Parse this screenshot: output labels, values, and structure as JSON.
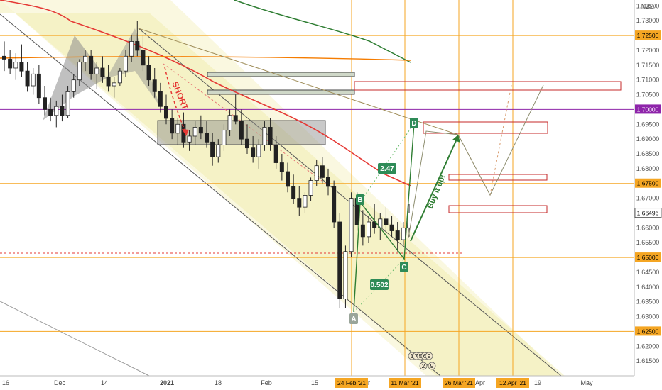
{
  "chart_data": {
    "type": "candlestick",
    "currency": "NZD",
    "ylim": [
      1.61,
      1.737
    ],
    "price_ticks": [
      "1.73500",
      "1.73000",
      "1.72500",
      "1.72000",
      "1.71500",
      "1.71000",
      "1.70500",
      "1.70000",
      "1.69500",
      "1.69000",
      "1.68500",
      "1.68000",
      "1.67500",
      "1.67000",
      "1.66496",
      "1.66000",
      "1.65500",
      "1.65000",
      "1.64500",
      "1.64000",
      "1.63500",
      "1.63000",
      "1.62500",
      "1.62000",
      "1.61500"
    ],
    "highlighted_prices": [
      {
        "label": "1.72500",
        "value": 1.725,
        "color": "#f5a623"
      },
      {
        "label": "1.70000",
        "value": 1.7,
        "color": "#8e24aa"
      },
      {
        "label": "1.67500",
        "value": 1.675,
        "color": "#f5a623"
      },
      {
        "label": "1.66496",
        "value": 1.66496,
        "color": "#ffffff"
      },
      {
        "label": "1.65000",
        "value": 1.65,
        "color": "#f5a623"
      },
      {
        "label": "1.62500",
        "value": 1.625,
        "color": "#f5a623"
      }
    ],
    "time_ticks": [
      "16",
      "Dec",
      "14",
      "2021",
      "18",
      "Feb",
      "15",
      "ar",
      "Apr",
      "19",
      "May"
    ],
    "time_tags": [
      "24 Feb '21",
      "11 Mar '21",
      "26 Mar '21",
      "12 Apr '21"
    ],
    "point_labels": [
      "A",
      "B",
      "C",
      "D"
    ],
    "ratio_labels": [
      "2.47",
      "0.502"
    ],
    "annotations": [
      "SHORT",
      "Buy it up!"
    ],
    "event_badges": [
      "1",
      "7",
      "5",
      "6",
      "9",
      "2",
      "9"
    ],
    "candles": [
      [
        1.718,
        1.723,
        1.713,
        1.717
      ],
      [
        1.717,
        1.72,
        1.712,
        1.714
      ],
      [
        1.714,
        1.719,
        1.71,
        1.716
      ],
      [
        1.716,
        1.722,
        1.711,
        1.713
      ],
      [
        1.713,
        1.716,
        1.706,
        1.708
      ],
      [
        1.708,
        1.714,
        1.705,
        1.712
      ],
      [
        1.712,
        1.715,
        1.702,
        1.704
      ],
      [
        1.704,
        1.708,
        1.698,
        1.7
      ],
      [
        1.7,
        1.704,
        1.696,
        1.698
      ],
      [
        1.698,
        1.703,
        1.694,
        1.701
      ],
      [
        1.701,
        1.705,
        1.696,
        1.698
      ],
      [
        1.698,
        1.708,
        1.697,
        1.706
      ],
      [
        1.706,
        1.712,
        1.704,
        1.71
      ],
      [
        1.71,
        1.717,
        1.708,
        1.716
      ],
      [
        1.716,
        1.72,
        1.713,
        1.718
      ],
      [
        1.718,
        1.72,
        1.71,
        1.712
      ],
      [
        1.712,
        1.716,
        1.707,
        1.714
      ],
      [
        1.714,
        1.718,
        1.709,
        1.711
      ],
      [
        1.711,
        1.715,
        1.706,
        1.708
      ],
      [
        1.708,
        1.711,
        1.704,
        1.709
      ],
      [
        1.709,
        1.714,
        1.708,
        1.713
      ],
      [
        1.713,
        1.72,
        1.711,
        1.718
      ],
      [
        1.718,
        1.725,
        1.716,
        1.723
      ],
      [
        1.723,
        1.73,
        1.718,
        1.72
      ],
      [
        1.72,
        1.725,
        1.713,
        1.715
      ],
      [
        1.715,
        1.718,
        1.708,
        1.71
      ],
      [
        1.71,
        1.714,
        1.704,
        1.706
      ],
      [
        1.706,
        1.709,
        1.699,
        1.701
      ],
      [
        1.701,
        1.705,
        1.695,
        1.697
      ],
      [
        1.697,
        1.7,
        1.69,
        1.692
      ],
      [
        1.692,
        1.697,
        1.688,
        1.695
      ],
      [
        1.695,
        1.699,
        1.687,
        1.689
      ],
      [
        1.689,
        1.693,
        1.686,
        1.691
      ],
      [
        1.691,
        1.696,
        1.688,
        1.694
      ],
      [
        1.694,
        1.698,
        1.69,
        1.692
      ],
      [
        1.692,
        1.696,
        1.687,
        1.689
      ],
      [
        1.689,
        1.692,
        1.681,
        1.684
      ],
      [
        1.684,
        1.69,
        1.682,
        1.688
      ],
      [
        1.688,
        1.695,
        1.686,
        1.693
      ],
      [
        1.693,
        1.7,
        1.691,
        1.698
      ],
      [
        1.698,
        1.705,
        1.695,
        1.696
      ],
      [
        1.696,
        1.7,
        1.688,
        1.69
      ],
      [
        1.69,
        1.695,
        1.685,
        1.687
      ],
      [
        1.687,
        1.691,
        1.682,
        1.684
      ],
      [
        1.684,
        1.69,
        1.68,
        1.688
      ],
      [
        1.688,
        1.696,
        1.686,
        1.694
      ],
      [
        1.694,
        1.697,
        1.686,
        1.688
      ],
      [
        1.688,
        1.691,
        1.68,
        1.682
      ],
      [
        1.682,
        1.685,
        1.676,
        1.679
      ],
      [
        1.679,
        1.682,
        1.672,
        1.674
      ],
      [
        1.674,
        1.678,
        1.668,
        1.67
      ],
      [
        1.67,
        1.674,
        1.664,
        1.667
      ],
      [
        1.667,
        1.672,
        1.665,
        1.671
      ],
      [
        1.671,
        1.677,
        1.669,
        1.676
      ],
      [
        1.676,
        1.683,
        1.674,
        1.681
      ],
      [
        1.681,
        1.684,
        1.675,
        1.677
      ],
      [
        1.677,
        1.68,
        1.671,
        1.674
      ],
      [
        1.674,
        1.676,
        1.66,
        1.662
      ],
      [
        1.662,
        1.665,
        1.633,
        1.636
      ],
      [
        1.636,
        1.654,
        1.633,
        1.652
      ],
      [
        1.652,
        1.672,
        1.65,
        1.67
      ],
      [
        1.67,
        1.672,
        1.659,
        1.661
      ],
      [
        1.661,
        1.666,
        1.654,
        1.657
      ],
      [
        1.657,
        1.664,
        1.655,
        1.662
      ],
      [
        1.662,
        1.668,
        1.658,
        1.66
      ],
      [
        1.66,
        1.665,
        1.656,
        1.663
      ],
      [
        1.663,
        1.667,
        1.659,
        1.661
      ],
      [
        1.661,
        1.664,
        1.657,
        1.659
      ],
      [
        1.659,
        1.662,
        1.652,
        1.656
      ],
      [
        1.656,
        1.662,
        1.654,
        1.66
      ],
      [
        1.66,
        1.668,
        1.657,
        1.665
      ]
    ]
  }
}
